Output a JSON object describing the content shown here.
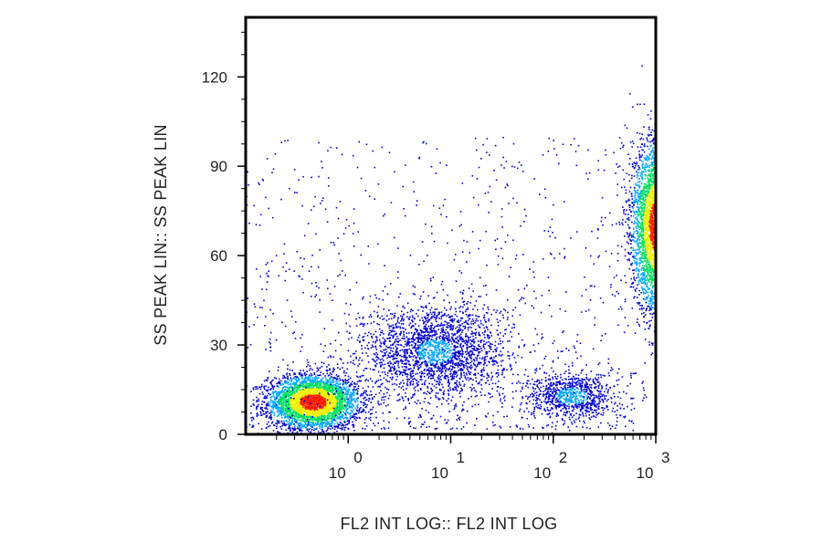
{
  "chart_data": {
    "type": "scatter",
    "subtype": "density",
    "title": "",
    "xlabel": "FL2 INT LOG:: FL2 INT LOG",
    "ylabel": "SS PEAK LIN:: SS PEAK LIN",
    "x_scale": "log",
    "xlim": [
      0.1,
      1000
    ],
    "ylim": [
      0,
      140
    ],
    "x_ticks": [
      {
        "value": 1,
        "base": "10",
        "exp": "0"
      },
      {
        "value": 10,
        "base": "10",
        "exp": "1"
      },
      {
        "value": 100,
        "base": "10",
        "exp": "2"
      },
      {
        "value": 1000,
        "base": "10",
        "exp": "3"
      }
    ],
    "y_ticks": [
      {
        "value": 0,
        "label": "0"
      },
      {
        "value": 30,
        "label": "30"
      },
      {
        "value": 60,
        "label": "60"
      },
      {
        "value": 90,
        "label": "90"
      },
      {
        "value": 120,
        "label": "120"
      }
    ],
    "populations": [
      {
        "center_x": 0.45,
        "center_y": 11,
        "spread_log_x": 0.22,
        "spread_y": 4.5,
        "relative_density": "high"
      },
      {
        "center_x": 7,
        "center_y": 28,
        "spread_log_x": 0.35,
        "spread_y": 8,
        "relative_density": "medium"
      },
      {
        "center_x": 150,
        "center_y": 13,
        "spread_log_x": 0.22,
        "spread_y": 4,
        "relative_density": "low"
      },
      {
        "center_x": 1000,
        "center_y": 70,
        "spread_log_x": 0.12,
        "spread_y": 14,
        "relative_density": "high"
      }
    ],
    "colormap": [
      "#0000d0",
      "#00a8ff",
      "#00e060",
      "#f0f000",
      "#ff2000"
    ],
    "grid": false
  }
}
